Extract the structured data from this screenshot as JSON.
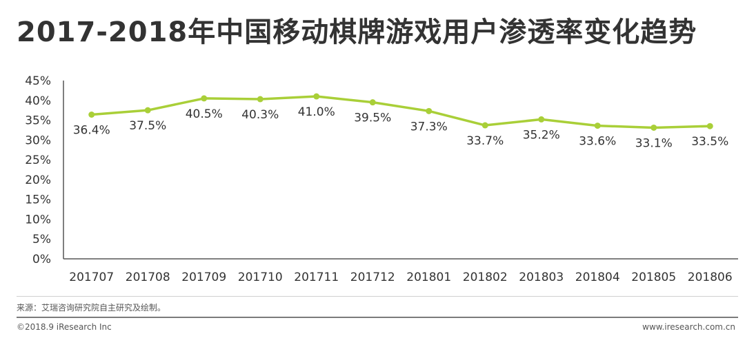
{
  "title": "2017-2018年中国移动棋牌游戏用户渗透率变化趋势",
  "source": "来源：艾瑞咨询研究院自主研究及绘制。",
  "footer": {
    "copyright": "©2018.9 iResearch Inc",
    "website": "www.iresearch.com.cn"
  },
  "colors": {
    "line": "#a9cf38",
    "axis": "#555555",
    "text": "#333333"
  },
  "chart_data": {
    "type": "line",
    "categories": [
      "201707",
      "201708",
      "201709",
      "201710",
      "201711",
      "201712",
      "201801",
      "201802",
      "201803",
      "201804",
      "201805",
      "201806"
    ],
    "series": [
      {
        "values": [
          36.4,
          37.5,
          40.5,
          40.3,
          41.0,
          39.5,
          37.3,
          33.7,
          35.2,
          33.6,
          33.1,
          33.5
        ],
        "labels": [
          "36.4%",
          "37.5%",
          "40.5%",
          "40.3%",
          "41.0%",
          "39.5%",
          "37.3%",
          "33.7%",
          "35.2%",
          "33.6%",
          "33.1%",
          "33.5%"
        ]
      }
    ],
    "ylim": [
      0,
      45
    ],
    "yticks": [
      "0%",
      "5%",
      "10%",
      "15%",
      "20%",
      "25%",
      "30%",
      "35%",
      "40%",
      "45%"
    ],
    "grid": false,
    "legend": "none"
  }
}
